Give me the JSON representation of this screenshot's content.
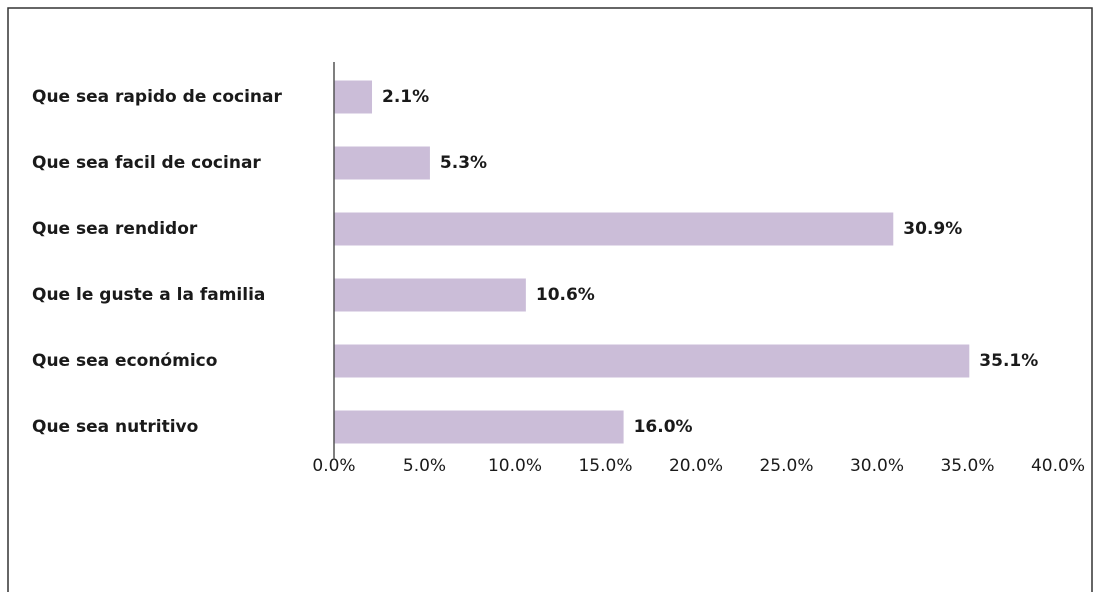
{
  "chart_data": {
    "type": "bar",
    "orientation": "horizontal",
    "categories": [
      "Que sea rapido de cocinar",
      "Que sea facil de cocinar",
      "Que sea rendidor",
      "Que le guste a la familia",
      "Que sea económico",
      "Que sea nutritivo"
    ],
    "values": [
      2.1,
      5.3,
      30.9,
      10.6,
      35.1,
      16.0
    ],
    "value_labels": [
      "2.1%",
      "5.3%",
      "30.9%",
      "10.6%",
      "35.1%",
      "16.0%"
    ],
    "color": "#cbbdd8",
    "xlim": [
      0,
      40
    ],
    "xticks": [
      {
        "value": 0,
        "label": "0.0%"
      },
      {
        "value": 5,
        "label": "5.0%"
      },
      {
        "value": 10,
        "label": "10.0%"
      },
      {
        "value": 15,
        "label": "15.0%"
      },
      {
        "value": 20,
        "label": "20.0%"
      },
      {
        "value": 25,
        "label": "25.0%"
      },
      {
        "value": 30,
        "label": "30.0%"
      },
      {
        "value": 35,
        "label": "35.0%"
      },
      {
        "value": 40,
        "label": "40.0%"
      }
    ]
  }
}
